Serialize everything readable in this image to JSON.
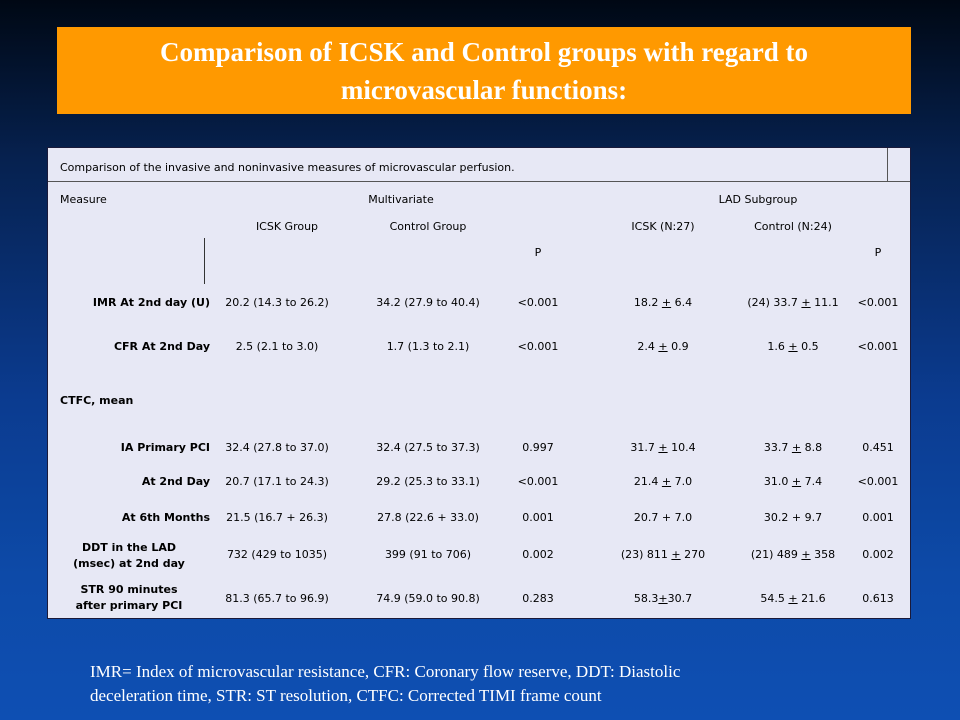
{
  "title": {
    "line1": "Comparison of  ICSK and Control groups with regard to",
    "line2": "microvascular functions:"
  },
  "table": {
    "caption": "Comparison of the invasive and noninvasive measures of microvascular perfusion.",
    "headers": {
      "measure": "Measure",
      "multivariate": "Multivariate",
      "lad_subgroup": "LAD Subgroup",
      "icsk_group": "ICSK Group",
      "control_group": "Control Group",
      "icsk_n": "ICSK (N:27)",
      "control_n": "Control (N:24)",
      "p1": "P",
      "p2": "P"
    },
    "rows": [
      {
        "measure": "IMR At 2nd day (U)",
        "icsk": "20.2 (14.3 to 26.2)",
        "control": "34.2 (27.9 to 40.4)",
        "p1": "<0.001",
        "lad_icsk_a": "18.2 ",
        "lad_icsk_pm": "+",
        "lad_icsk_b": " 6.4",
        "lad_control_a": "(24) 33.7 ",
        "lad_control_pm": "+",
        "lad_control_b": " 11.1",
        "p2": "<0.001"
      },
      {
        "measure": "CFR At 2nd Day",
        "icsk": "2.5 (2.1 to 3.0)",
        "control": "1.7 (1.3 to 2.1)",
        "p1": "<0.001",
        "lad_icsk_a": "2.4 ",
        "lad_icsk_pm": "+",
        "lad_icsk_b": " 0.9",
        "lad_control_a": "1.6 ",
        "lad_control_pm": "+",
        "lad_control_b": " 0.5",
        "p2": "<0.001"
      },
      {
        "measure": "CTFC, mean"
      },
      {
        "measure": "IA Primary  PCI",
        "icsk": "32.4 (27.8 to 37.0)",
        "control": "32.4 (27.5 to 37.3)",
        "p1": "0.997",
        "lad_icsk_a": "31.7 ",
        "lad_icsk_pm": "+",
        "lad_icsk_b": " 10.4",
        "lad_control_a": "33.7 ",
        "lad_control_pm": "+",
        "lad_control_b": " 8.8",
        "p2": "0.451"
      },
      {
        "measure": "At 2nd Day",
        "icsk": "20.7 (17.1 to 24.3)",
        "control": "29.2 (25.3 to 33.1)",
        "p1": "<0.001",
        "lad_icsk_a": "21.4 ",
        "lad_icsk_pm": "+",
        "lad_icsk_b": " 7.0",
        "lad_control_a": "31.0 ",
        "lad_control_pm": "+",
        "lad_control_b": " 7.4",
        "p2": "<0.001"
      },
      {
        "measure": "At 6th Months",
        "icsk": "21.5 (16.7 + 26.3)",
        "control": "27.8 (22.6 + 33.0)",
        "p1": "0.001",
        "lad_icsk_a": "20.7 + 7.0",
        "lad_icsk_pm": "",
        "lad_icsk_b": "",
        "lad_control_a": "30.2 + 9.7",
        "lad_control_pm": "",
        "lad_control_b": "",
        "p2": "0.001"
      },
      {
        "measure_l1": "DDT in the LAD",
        "measure_l2": "(msec) at 2nd day",
        "icsk": "732 (429 to 1035)",
        "control": "399 (91 to 706)",
        "p1": "0.002",
        "lad_icsk_a": "(23) 811 ",
        "lad_icsk_pm": "+",
        "lad_icsk_b": " 270",
        "lad_control_a": "(21) 489 ",
        "lad_control_pm": "+",
        "lad_control_b": " 358",
        "p2": "0.002"
      },
      {
        "measure_l1": "STR 90 minutes",
        "measure_l2": "after primary PCI",
        "icsk": "81.3 (65.7 to 96.9)",
        "control": "74.9 (59.0 to 90.8)",
        "p1": "0.283",
        "lad_icsk_a": "58.3",
        "lad_icsk_pm": "+",
        "lad_icsk_b": "30.7",
        "lad_control_a": "54.5 ",
        "lad_control_pm": "+",
        "lad_control_b": " 21.6",
        "p2": "0.613"
      }
    ]
  },
  "footnote": {
    "line1": "IMR= Index of microvascular resistance, CFR: Coronary flow reserve, DDT: Diastolic",
    "line2": "deceleration time, STR: ST resolution, CTFC: Corrected TIMI frame count"
  }
}
